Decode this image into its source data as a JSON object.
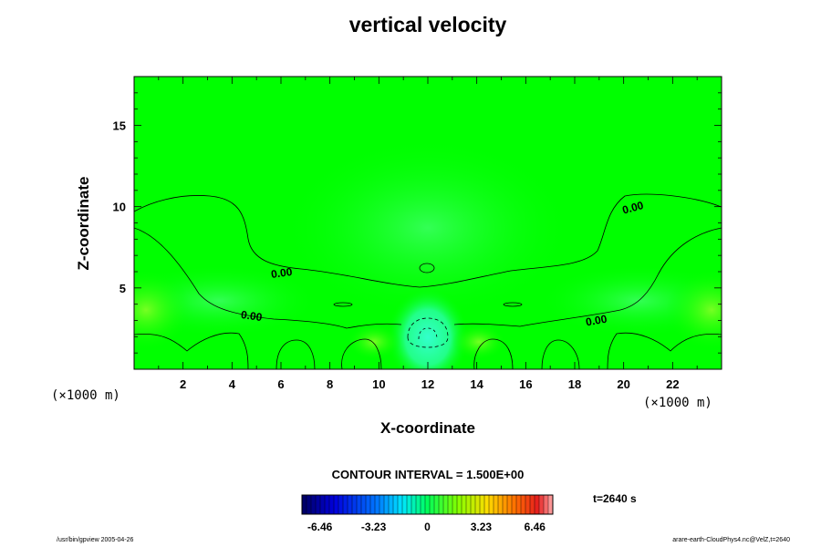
{
  "chart_data": {
    "type": "contour",
    "title": "vertical velocity",
    "xlabel": "X-coordinate",
    "ylabel": "Z-coordinate",
    "x_unit": "(×1000 m)",
    "y_unit": "(×1000 m)",
    "xlim": [
      0,
      24
    ],
    "ylim": [
      0,
      18
    ],
    "x_ticks": [
      2,
      4,
      6,
      8,
      10,
      12,
      14,
      16,
      18,
      20,
      22
    ],
    "y_ticks": [
      5,
      10,
      15
    ],
    "contour_labels": [
      "0.00",
      "0.00",
      "0.00",
      "0.00"
    ],
    "contour_interval_text": "CONTOUR INTERVAL = 1.500E+00",
    "colorbar": {
      "min": -7.54,
      "max": 7.54,
      "ticks": [
        -6.46,
        -3.23,
        0,
        3.23,
        6.46
      ],
      "tick_labels": [
        "-6.46",
        "-3.23",
        "0",
        "3.23",
        "6.46"
      ]
    },
    "time_label": "t=2640 s"
  },
  "footer": {
    "left": "/usr/bin/gpview 2005-04-26",
    "right": "arare-earth-CloudPhys4.nc@VelZ,t=2640"
  }
}
